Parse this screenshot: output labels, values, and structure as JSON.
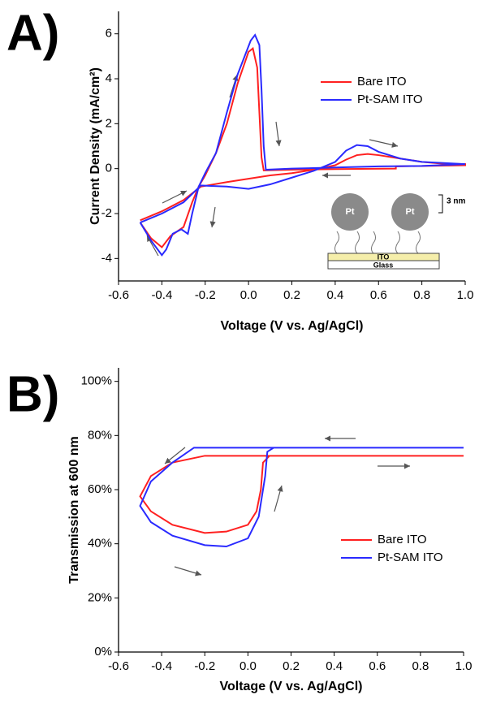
{
  "chart_data": [
    {
      "type": "line",
      "panel_label": "A)",
      "xlabel": "Voltage (V vs. Ag/AgCl)",
      "ylabel": "Current Density (mA/cm²)",
      "xlim": [
        -0.6,
        1.0
      ],
      "ylim": [
        -5,
        7
      ],
      "xticks": [
        -0.6,
        -0.4,
        -0.2,
        {
          "value": 0,
          "label": "0.0"
        },
        0.2,
        0.4,
        0.6,
        0.8,
        {
          "value": 1,
          "label": "1.0"
        }
      ],
      "yticks": [
        -4,
        -2,
        0,
        2,
        4,
        6
      ],
      "series": [
        {
          "name": "Bare ITO",
          "color": "#ff2020",
          "x": [
            -0.5,
            -0.4,
            -0.3,
            -0.22,
            -0.1,
            0.0,
            0.1,
            0.2,
            0.3,
            0.4,
            0.45,
            0.5,
            0.55,
            0.6,
            0.7,
            0.8,
            0.9,
            1.0,
            1.0,
            0.68,
            0.68,
            0.4,
            0.2,
            0.07,
            0.06,
            0.05,
            0.04,
            0.02,
            0.0,
            -0.05,
            -0.1,
            -0.15,
            -0.2,
            -0.23,
            -0.26,
            -0.3,
            -0.33,
            -0.36,
            -0.4,
            -0.45,
            -0.5
          ],
          "values": [
            -2.3,
            -1.9,
            -1.4,
            -0.8,
            -0.6,
            -0.45,
            -0.3,
            -0.2,
            -0.05,
            0.15,
            0.4,
            0.6,
            0.65,
            0.6,
            0.45,
            0.3,
            0.22,
            0.2,
            0.15,
            0.1,
            0.0,
            -0.02,
            -0.05,
            -0.08,
            0.5,
            2.5,
            4.5,
            5.35,
            5.2,
            3.8,
            2.0,
            0.7,
            -0.3,
            -0.8,
            -1.5,
            -2.6,
            -2.8,
            -3.0,
            -3.5,
            -3.1,
            -2.4
          ]
        },
        {
          "name": "Pt-SAM ITO",
          "color": "#2a2aff",
          "x": [
            -0.5,
            -0.4,
            -0.3,
            -0.22,
            -0.1,
            0.0,
            0.1,
            0.2,
            0.3,
            0.4,
            0.45,
            0.5,
            0.55,
            0.6,
            0.7,
            0.8,
            0.9,
            1.0,
            0.8,
            0.6,
            0.4,
            0.2,
            0.08,
            0.07,
            0.06,
            0.05,
            0.03,
            0.01,
            -0.05,
            -0.1,
            -0.15,
            -0.2,
            -0.23,
            -0.26,
            -0.28,
            -0.31,
            -0.35,
            -0.38,
            -0.4,
            -0.45,
            -0.5
          ],
          "values": [
            -2.4,
            -2.0,
            -1.5,
            -0.75,
            -0.8,
            -0.9,
            -0.7,
            -0.4,
            -0.1,
            0.3,
            0.8,
            1.05,
            1.0,
            0.75,
            0.45,
            0.3,
            0.25,
            0.2,
            0.12,
            0.1,
            0.05,
            0.0,
            -0.05,
            1.0,
            3.5,
            5.5,
            5.95,
            5.7,
            4.2,
            2.5,
            0.7,
            -0.2,
            -0.8,
            -2.0,
            -2.9,
            -2.7,
            -2.9,
            -3.6,
            -3.85,
            -3.2,
            -2.4
          ]
        }
      ],
      "annotations": [
        "Pt",
        "Pt",
        "3 nm",
        "ITO",
        "Glass"
      ]
    },
    {
      "type": "line",
      "panel_label": "B)",
      "xlabel": "Voltage (V vs. Ag/AgCl)",
      "ylabel": "Transmission at 600 nm",
      "xlim": [
        -0.6,
        1.0
      ],
      "ylim": [
        0,
        105
      ],
      "xticks": [
        -0.6,
        -0.4,
        -0.2,
        {
          "value": 0,
          "label": "0.0"
        },
        0.2,
        0.4,
        0.6,
        0.8,
        {
          "value": 1,
          "label": "1.0"
        }
      ],
      "yticks": [
        {
          "value": 0,
          "label": "0%"
        },
        {
          "value": 20,
          "label": "20%"
        },
        {
          "value": 40,
          "label": "40%"
        },
        {
          "value": 60,
          "label": "60%"
        },
        {
          "value": 80,
          "label": "80%"
        },
        {
          "value": 100,
          "label": "100%"
        }
      ],
      "series": [
        {
          "name": "Bare ITO",
          "color": "#ff2020",
          "x": [
            1.0,
            -0.2,
            -0.35,
            -0.45,
            -0.5,
            -0.45,
            -0.35,
            -0.2,
            -0.1,
            0.0,
            0.04,
            0.06,
            0.07,
            0.1,
            1.0
          ],
          "values": [
            72.5,
            72.5,
            70,
            65,
            57.5,
            52,
            47,
            44,
            44.5,
            47,
            52,
            60,
            70,
            72.5,
            72.5
          ]
        },
        {
          "name": "Pt-SAM ITO",
          "color": "#2a2aff",
          "x": [
            1.0,
            -0.25,
            -0.35,
            -0.45,
            -0.5,
            -0.45,
            -0.35,
            -0.2,
            -0.1,
            0.0,
            0.05,
            0.08,
            0.09,
            0.12,
            1.0
          ],
          "values": [
            75.5,
            75.5,
            70,
            63,
            54,
            48,
            43,
            39.5,
            39,
            42,
            50,
            65,
            74,
            75.5,
            75.5
          ]
        }
      ]
    }
  ]
}
